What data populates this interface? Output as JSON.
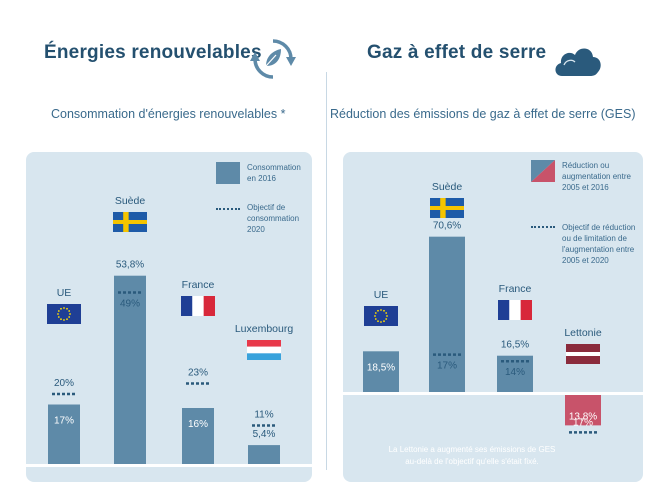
{
  "left": {
    "title": "Énergies renouvelables",
    "subtitle": "Consommation d'énergies renouvelables *",
    "icon": "recycle-leaf-icon",
    "legend_bar": "Consommation en 2016",
    "legend_target": "Objectif de consommation 2020"
  },
  "right": {
    "title": "Gaz à effet de serre",
    "subtitle": "Réduction des émissions de gaz à effet de serre (GES)",
    "icon": "cloud-icon",
    "legend_bar": "Réduction ou augmentation entre 2005 et 2016",
    "legend_target": "Objectif de réduction ou de limitation de l'augmentation entre 2005 et 2020",
    "note_line1": "La Lettonie a augmenté ses émissions de GES",
    "note_line2": "au-delà de l'objectif qu'elle s'était fixé."
  },
  "colors": {
    "bar": "#5e8aa8",
    "bar_red": "#c8536a",
    "target": "#2a5a7c",
    "panel": "#d8e6ef"
  },
  "chart_data": [
    {
      "type": "bar",
      "title": "Consommation d'énergies renouvelables *",
      "unit": "%",
      "categories": [
        "UE",
        "Suède",
        "France",
        "Luxembourg"
      ],
      "series": [
        {
          "name": "Consommation en 2016",
          "values": [
            17,
            53.8,
            16,
            5.4
          ],
          "labels": [
            "17%",
            "53,8%",
            "16%",
            "5,4%"
          ]
        },
        {
          "name": "Objectif de consommation 2020",
          "values": [
            20,
            49,
            23,
            11
          ],
          "labels": [
            "20%",
            "49%",
            "23%",
            "11%"
          ]
        }
      ],
      "flags": [
        "eu",
        "se",
        "fr",
        "lu"
      ]
    },
    {
      "type": "bar",
      "title": "Réduction des émissions de gaz à effet de serre (GES)",
      "unit": "%",
      "categories": [
        "UE",
        "Suède",
        "France",
        "Lettonie"
      ],
      "series": [
        {
          "name": "Réduction ou augmentation entre 2005 et 2016",
          "values": [
            18.5,
            70.6,
            16.5,
            -13.8
          ],
          "labels": [
            "18,5%",
            "70,6%",
            "16,5%",
            "13,8%"
          ]
        },
        {
          "name": "Objectif de réduction ou de limitation de l'augmentation entre 2005 et 2020",
          "values": [
            null,
            17,
            14,
            -17
          ],
          "labels": [
            "",
            "17%",
            "14%",
            "17%"
          ]
        }
      ],
      "flags": [
        "eu",
        "se",
        "fr",
        "lv"
      ]
    }
  ]
}
